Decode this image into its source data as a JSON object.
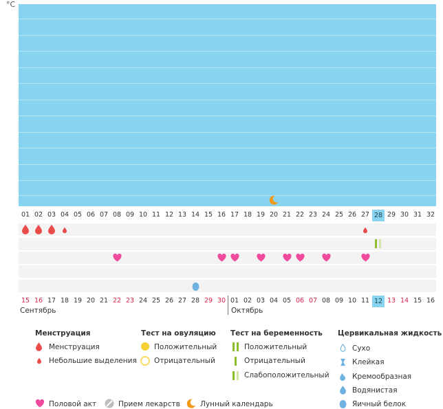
{
  "chart": {
    "unit_label": "°C",
    "colors": {
      "area": "#87d3f0",
      "menstruation": "#ea4b4b",
      "sex": "#f04a9c",
      "ovulation_positive": "#f5d033",
      "pregnancy": "#8cbd2b",
      "cervical": "#6fb1e0",
      "moon": "#f29a18"
    }
  },
  "cycle_days": [
    "01",
    "02",
    "03",
    "04",
    "05",
    "06",
    "07",
    "08",
    "09",
    "10",
    "11",
    "12",
    "13",
    "14",
    "15",
    "16",
    "17",
    "18",
    "19",
    "20",
    "21",
    "22",
    "23",
    "24",
    "25",
    "26",
    "27",
    "28",
    "29",
    "30",
    "31",
    "32"
  ],
  "today_index": 27,
  "calendar": {
    "dates": [
      {
        "d": "15",
        "w": true
      },
      {
        "d": "16",
        "w": true
      },
      {
        "d": "17",
        "w": false
      },
      {
        "d": "18",
        "w": false
      },
      {
        "d": "19",
        "w": false
      },
      {
        "d": "20",
        "w": false
      },
      {
        "d": "21",
        "w": false
      },
      {
        "d": "22",
        "w": true
      },
      {
        "d": "23",
        "w": true
      },
      {
        "d": "24",
        "w": false
      },
      {
        "d": "25",
        "w": false
      },
      {
        "d": "26",
        "w": false
      },
      {
        "d": "27",
        "w": false
      },
      {
        "d": "28",
        "w": false
      },
      {
        "d": "29",
        "w": true
      },
      {
        "d": "30",
        "w": true
      },
      {
        "d": "01",
        "w": false
      },
      {
        "d": "02",
        "w": false
      },
      {
        "d": "03",
        "w": false
      },
      {
        "d": "04",
        "w": false
      },
      {
        "d": "05",
        "w": false
      },
      {
        "d": "06",
        "w": true
      },
      {
        "d": "07",
        "w": true
      },
      {
        "d": "08",
        "w": false
      },
      {
        "d": "09",
        "w": false
      },
      {
        "d": "10",
        "w": false
      },
      {
        "d": "11",
        "w": false
      },
      {
        "d": "12",
        "w": false
      },
      {
        "d": "13",
        "w": true
      },
      {
        "d": "14",
        "w": true
      },
      {
        "d": "15",
        "w": false
      },
      {
        "d": "16",
        "w": false
      }
    ],
    "month_left": "Сентябрь",
    "month_right": "Октябрь"
  },
  "markers": {
    "moon_day_index": 19,
    "menstruation": [
      {
        "day": 0,
        "type": "full"
      },
      {
        "day": 1,
        "type": "full"
      },
      {
        "day": 2,
        "type": "full"
      },
      {
        "day": 3,
        "type": "light"
      },
      {
        "day": 26,
        "type": "light"
      }
    ],
    "pregnancy_test": [
      {
        "day": 27,
        "type": "weak"
      }
    ],
    "sex": [
      7,
      15,
      16,
      18,
      20,
      21,
      23,
      26
    ],
    "cervical": [
      {
        "day": 13,
        "type": "egg_white"
      }
    ]
  },
  "legend": {
    "menstruation": {
      "title": "Менструация",
      "items": [
        "Менструация",
        "Небольшие выделения"
      ]
    },
    "ovulation": {
      "title": "Тест на овуляцию",
      "items": [
        "Положительный",
        "Отрицательный"
      ]
    },
    "pregnancy": {
      "title": "Тест на беременность",
      "items": [
        "Положительный",
        "Отрицательный",
        "Слабоположительный"
      ]
    },
    "cervical": {
      "title": "Цервикальная жидкость",
      "items": [
        "Сухо",
        "Клейкая",
        "Кремообразная",
        "Водянистая",
        "Яичный белок"
      ]
    },
    "bottom": [
      "Половой акт",
      "Прием лекарств",
      "Лунный календарь"
    ]
  }
}
